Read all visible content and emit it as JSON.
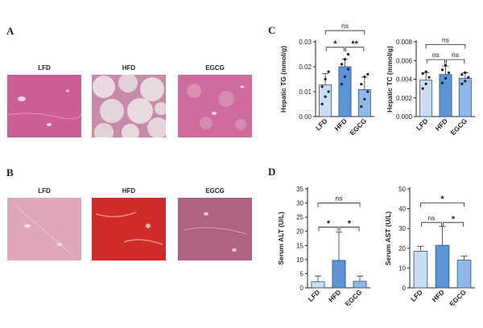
{
  "panels": {
    "A": {
      "letter": "A",
      "labels": [
        "LFD",
        "HFD",
        "EGCG"
      ]
    },
    "B": {
      "letter": "B",
      "labels": [
        "LFD",
        "HFD",
        "EGCG"
      ]
    },
    "C": {
      "letter": "C"
    },
    "D": {
      "letter": "D"
    }
  },
  "colors": {
    "he_pink": "#d46a9a",
    "sirius_red": "#d42b2b",
    "bar_light": "#c9ddf3",
    "bar_mid": "#5b95d8",
    "bar_soft": "#8fb8e8",
    "bar_edge": "#2d4f86"
  },
  "chart_data": [
    {
      "id": "tg",
      "type": "bar",
      "ylabel": "Hepatic TG (mmol/g)",
      "categories": [
        "LFD",
        "HFD",
        "EGCG"
      ],
      "values": [
        0.0127,
        0.02,
        0.0108
      ],
      "errors": [
        0.0045,
        0.003,
        0.005
      ],
      "ylim": [
        0,
        0.03
      ],
      "yticks": [
        "0.00",
        "0.01",
        "0.02",
        "0.03"
      ],
      "ytick_values": [
        0,
        0.01,
        0.02,
        0.03
      ],
      "points": [
        [
          0.005,
          0.008,
          0.01,
          0.012,
          0.015,
          0.018
        ],
        [
          0.013,
          0.016,
          0.019,
          0.021,
          0.023,
          0.025
        ],
        [
          0.004,
          0.007,
          0.01,
          0.013,
          0.016,
          0.017
        ]
      ],
      "sig": [
        {
          "label": "ns",
          "from": 0,
          "to": 2,
          "level": 0.0345
        },
        {
          "label": "*",
          "from": 0,
          "to": 1,
          "level": 0.0278
        },
        {
          "label": "**",
          "from": 1,
          "to": 2,
          "level": 0.0278
        }
      ]
    },
    {
      "id": "tc",
      "type": "bar",
      "ylabel": "Hepatic TC (mmol/g)",
      "categories": [
        "LFD",
        "HFD",
        "EGCG"
      ],
      "values": [
        0.0039,
        0.0045,
        0.0041
      ],
      "errors": [
        0.0008,
        0.0009,
        0.0006
      ],
      "ylim": [
        0,
        0.008
      ],
      "yticks": [
        "0.000",
        "0.002",
        "0.004",
        "0.006",
        "0.008"
      ],
      "ytick_values": [
        0,
        0.002,
        0.004,
        0.006,
        0.008
      ],
      "points": [
        [
          0.003,
          0.0035,
          0.0042,
          0.0046,
          0.0048
        ],
        [
          0.0036,
          0.0041,
          0.0047,
          0.005,
          0.0055
        ],
        [
          0.0035,
          0.0038,
          0.0042,
          0.0045,
          0.0047
        ]
      ],
      "sig": [
        {
          "label": "ns",
          "from": 0,
          "to": 2,
          "level": 0.0077
        },
        {
          "label": "ns",
          "from": 0,
          "to": 1,
          "level": 0.0061
        },
        {
          "label": "ns",
          "from": 1,
          "to": 2,
          "level": 0.0061
        }
      ]
    },
    {
      "id": "alt",
      "type": "bar",
      "ylabel": "Serum ALT (U/L)",
      "categories": [
        "LFD",
        "HFD",
        "EGCG"
      ],
      "values": [
        2.2,
        9.7,
        2.3
      ],
      "errors": [
        2.0,
        10.0,
        1.8
      ],
      "ylim": [
        0,
        35
      ],
      "yticks": [
        "0",
        "5",
        "10",
        "15",
        "20",
        "25",
        "30",
        "35"
      ],
      "ytick_values": [
        0,
        5,
        10,
        15,
        20,
        25,
        30,
        35
      ],
      "points": [],
      "sig": [
        {
          "label": "ns",
          "from": 0,
          "to": 2,
          "level": 30
        },
        {
          "label": "*",
          "from": 0,
          "to": 1,
          "level": 21.5
        },
        {
          "label": "*",
          "from": 1,
          "to": 2,
          "level": 21.5
        }
      ]
    },
    {
      "id": "ast",
      "type": "bar",
      "ylabel": "Serum AST (U/L)",
      "categories": [
        "LFD",
        "HFD",
        "EGCG"
      ],
      "values": [
        18.5,
        21.5,
        14.0
      ],
      "errors": [
        2.5,
        9.5,
        2.0
      ],
      "ylim": [
        0,
        50
      ],
      "yticks": [
        "0",
        "10",
        "20",
        "30",
        "40",
        "50"
      ],
      "ytick_values": [
        0,
        10,
        20,
        30,
        40,
        50
      ],
      "points": [],
      "sig": [
        {
          "label": "*",
          "from": 0,
          "to": 2,
          "level": 43
        },
        {
          "label": "ns",
          "from": 0,
          "to": 1,
          "level": 33
        },
        {
          "label": "*",
          "from": 1,
          "to": 2,
          "level": 33
        }
      ]
    }
  ]
}
